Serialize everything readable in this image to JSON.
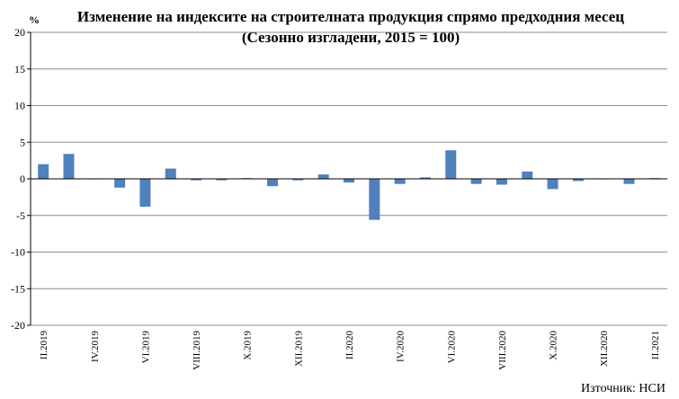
{
  "chart_data": {
    "type": "bar",
    "title": "Изменение на индексите на строителната продукция спрямо предходния месец",
    "subtitle": "(Сезонно изгладени, 2015 = 100)",
    "ylabel": "%",
    "ylim": [
      -20,
      20
    ],
    "yticks": [
      20,
      15,
      10,
      5,
      0,
      -5,
      -10,
      -15,
      -20
    ],
    "grid": true,
    "source": "Източник: НСИ",
    "categories": [
      "II.2019",
      "III.2019",
      "IV.2019",
      "V.2019",
      "VI.2019",
      "VII.2019",
      "VIII.2019",
      "IX.2019",
      "X.2019",
      "XI.2019",
      "XII.2019",
      "I.2020",
      "II.2020",
      "III.2020",
      "IV.2020",
      "V.2020",
      "VI.2020",
      "VII.2020",
      "VIII.2020",
      "IX.2020",
      "X.2020",
      "XI.2020",
      "XII.2020",
      "I.2021",
      "II.2021"
    ],
    "x_tick_labels": [
      "II.2019",
      "IV.2019",
      "VI.2019",
      "VIII.2019",
      "X.2019",
      "XII.2019",
      "II.2020",
      "IV.2020",
      "VI.2020",
      "VIII.2020",
      "X.2020",
      "XII.2020",
      "II.2021"
    ],
    "values": [
      2.0,
      3.4,
      0.0,
      -1.2,
      -3.8,
      1.4,
      -0.2,
      -0.2,
      0.1,
      -1.0,
      -0.2,
      0.6,
      -0.5,
      -5.6,
      -0.7,
      0.2,
      3.9,
      -0.7,
      -0.8,
      1.0,
      -1.4,
      -0.3,
      0.0,
      -0.7,
      0.1
    ],
    "bar_color": "#4f81bd"
  }
}
